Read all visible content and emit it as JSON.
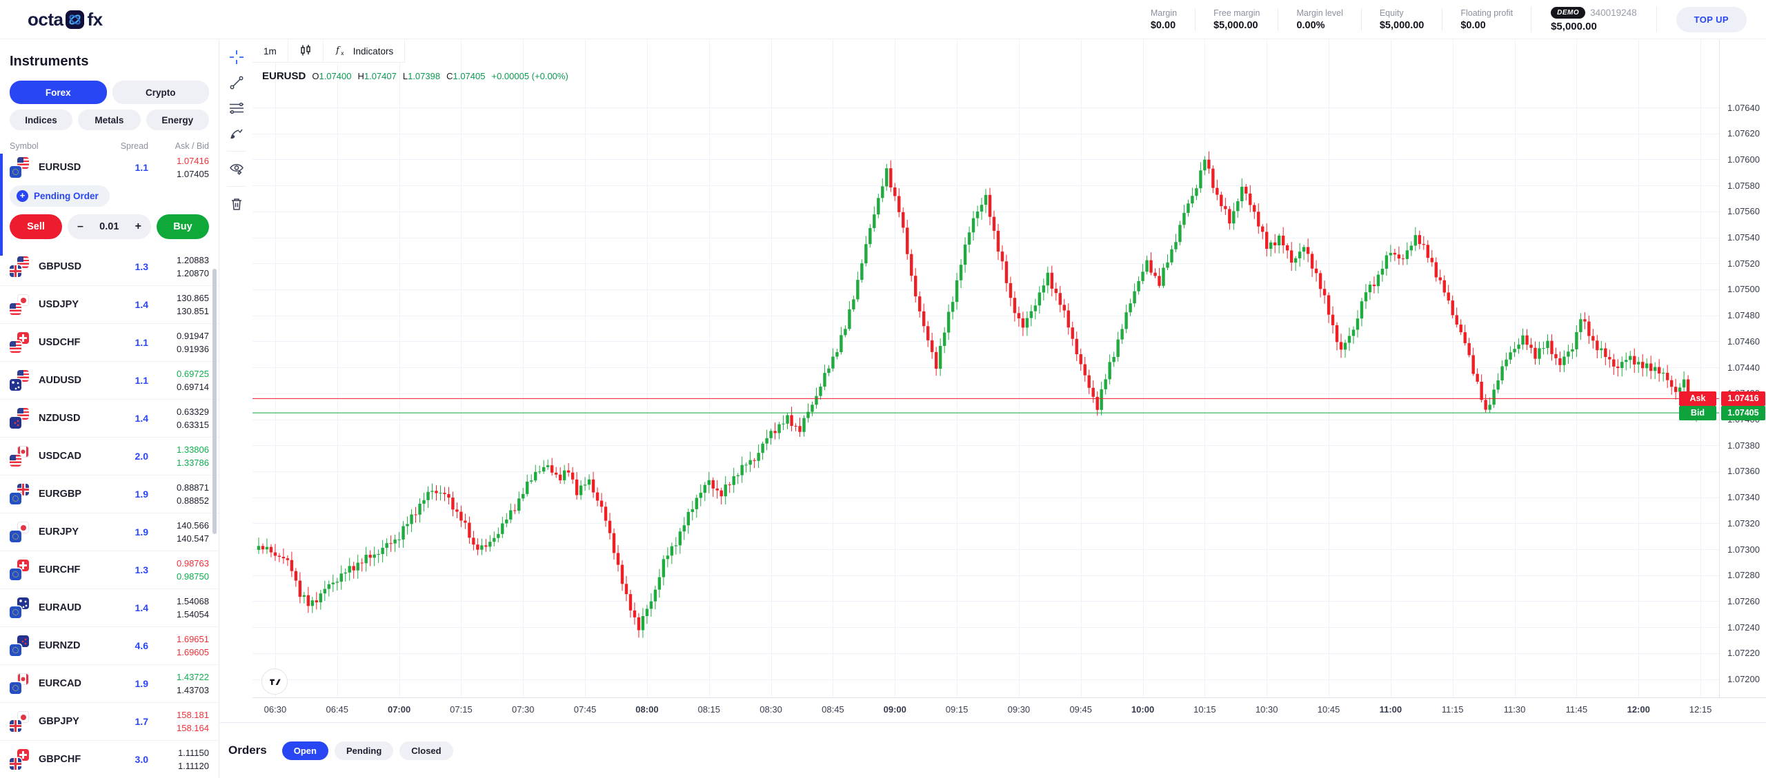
{
  "header": {
    "logo": {
      "text_left": "octa",
      "text_right": "fx"
    },
    "metrics": [
      {
        "label": "Margin",
        "value": "$0.00"
      },
      {
        "label": "Free margin",
        "value": "$5,000.00"
      },
      {
        "label": "Margin level",
        "value": "0.00%"
      },
      {
        "label": "Equity",
        "value": "$5,000.00"
      },
      {
        "label": "Floating profit",
        "value": "$0.00"
      }
    ],
    "account": {
      "badge": "DEMO",
      "id": "340019248",
      "balance": "$5,000.00"
    },
    "topup_label": "TOP UP"
  },
  "sidebar": {
    "title": "Instruments",
    "categories": [
      {
        "label": "Forex",
        "active": true
      },
      {
        "label": "Crypto",
        "active": false
      },
      {
        "label": "Indices",
        "active": false
      },
      {
        "label": "Metals",
        "active": false
      },
      {
        "label": "Energy",
        "active": false
      }
    ],
    "columns": {
      "symbol": "Symbol",
      "spread": "Spread",
      "askbid": "Ask / Bid"
    },
    "selected": {
      "symbol": "EURUSD",
      "base": "EUR",
      "quote": "USD",
      "spread": "1.1",
      "ask": "1.07416",
      "bid": "1.07405",
      "ask_color": "red",
      "bid_color": "dark"
    },
    "pending_label": "Pending Order",
    "trade": {
      "sell_label": "Sell",
      "buy_label": "Buy",
      "minus": "–",
      "volume": "0.01",
      "plus": "+"
    },
    "rows": [
      {
        "symbol": "GBPUSD",
        "base": "GBP",
        "quote": "USD",
        "spread": "1.3",
        "ask": "1.20883",
        "bid": "1.20870",
        "ask_color": "dark",
        "bid_color": "dark"
      },
      {
        "symbol": "USDJPY",
        "base": "USD",
        "quote": "JPY",
        "spread": "1.4",
        "ask": "130.865",
        "bid": "130.851",
        "ask_color": "dark",
        "bid_color": "dark"
      },
      {
        "symbol": "USDCHF",
        "base": "USD",
        "quote": "CHF",
        "spread": "1.1",
        "ask": "0.91947",
        "bid": "0.91936",
        "ask_color": "dark",
        "bid_color": "dark"
      },
      {
        "symbol": "AUDUSD",
        "base": "AUD",
        "quote": "USD",
        "spread": "1.1",
        "ask": "0.69725",
        "bid": "0.69714",
        "ask_color": "green",
        "bid_color": "dark"
      },
      {
        "symbol": "NZDUSD",
        "base": "NZD",
        "quote": "USD",
        "spread": "1.4",
        "ask": "0.63329",
        "bid": "0.63315",
        "ask_color": "dark",
        "bid_color": "dark"
      },
      {
        "symbol": "USDCAD",
        "base": "USD",
        "quote": "CAD",
        "spread": "2.0",
        "ask": "1.33806",
        "bid": "1.33786",
        "ask_color": "green",
        "bid_color": "green"
      },
      {
        "symbol": "EURGBP",
        "base": "EUR",
        "quote": "GBP",
        "spread": "1.9",
        "ask": "0.88871",
        "bid": "0.88852",
        "ask_color": "dark",
        "bid_color": "dark"
      },
      {
        "symbol": "EURJPY",
        "base": "EUR",
        "quote": "JPY",
        "spread": "1.9",
        "ask": "140.566",
        "bid": "140.547",
        "ask_color": "dark",
        "bid_color": "dark"
      },
      {
        "symbol": "EURCHF",
        "base": "EUR",
        "quote": "CHF",
        "spread": "1.3",
        "ask": "0.98763",
        "bid": "0.98750",
        "ask_color": "red",
        "bid_color": "green"
      },
      {
        "symbol": "EURAUD",
        "base": "EUR",
        "quote": "AUD",
        "spread": "1.4",
        "ask": "1.54068",
        "bid": "1.54054",
        "ask_color": "dark",
        "bid_color": "dark"
      },
      {
        "symbol": "EURNZD",
        "base": "EUR",
        "quote": "NZD",
        "spread": "4.6",
        "ask": "1.69651",
        "bid": "1.69605",
        "ask_color": "red",
        "bid_color": "red"
      },
      {
        "symbol": "EURCAD",
        "base": "EUR",
        "quote": "CAD",
        "spread": "1.9",
        "ask": "1.43722",
        "bid": "1.43703",
        "ask_color": "green",
        "bid_color": "dark"
      },
      {
        "symbol": "GBPJPY",
        "base": "GBP",
        "quote": "JPY",
        "spread": "1.7",
        "ask": "158.181",
        "bid": "158.164",
        "ask_color": "red",
        "bid_color": "red"
      },
      {
        "symbol": "GBPCHF",
        "base": "GBP",
        "quote": "CHF",
        "spread": "3.0",
        "ask": "1.11150",
        "bid": "1.11120",
        "ask_color": "dark",
        "bid_color": "dark"
      }
    ]
  },
  "chart": {
    "timeframe_label": "1m",
    "indicators_label": "Indicators",
    "symbol": "EURUSD",
    "ohlc": {
      "o_label": "O",
      "o": "1.07400",
      "h_label": "H",
      "h": "1.07407",
      "l_label": "L",
      "l": "1.07398",
      "c_label": "C",
      "c": "1.07405",
      "change": "+0.00005 (+0.00%)"
    },
    "ask_label": "Ask",
    "ask_price": "1.07416",
    "bid_label": "Bid",
    "bid_price": "1.07405"
  },
  "chart_data": {
    "type": "candlestick",
    "symbol": "EURUSD",
    "timeframe": "1m",
    "up_color": "#20ab40",
    "down_color": "#ee2026",
    "grid_color": "#f0f2fa",
    "ask_line": 1.07416,
    "bid_line": 1.07405,
    "y_axis": {
      "min": 1.07186,
      "max": 1.07692,
      "decimals": 5,
      "ticks": [
        1.072,
        1.0722,
        1.0724,
        1.0726,
        1.0728,
        1.073,
        1.0732,
        1.0734,
        1.0736,
        1.0738,
        1.074,
        1.0742,
        1.0744,
        1.0746,
        1.0748,
        1.075,
        1.0752,
        1.0754,
        1.0756,
        1.0758,
        1.076,
        1.0762,
        1.0764
      ]
    },
    "x_axis": {
      "m_min": 384.5,
      "m_max": 739.5,
      "labels": [
        "06:30",
        "06:45",
        "07:00",
        "07:15",
        "07:30",
        "07:45",
        "08:00",
        "08:15",
        "08:30",
        "08:45",
        "09:00",
        "09:15",
        "09:30",
        "09:45",
        "10:00",
        "10:15",
        "10:30",
        "10:45",
        "11:00",
        "11:15",
        "11:30",
        "11:45",
        "12:00",
        "12:15"
      ]
    },
    "last_candle": {
      "o": 1.074,
      "h": 1.07407,
      "l": 1.07398,
      "c": 1.07405
    },
    "anchors": [
      [
        386,
        1.07302
      ],
      [
        389,
        1.07298
      ],
      [
        392,
        1.07293
      ],
      [
        394,
        1.07285
      ],
      [
        396,
        1.07266
      ],
      [
        398,
        1.07257
      ],
      [
        400,
        1.07262
      ],
      [
        403,
        1.07272
      ],
      [
        406,
        1.0728
      ],
      [
        410,
        1.07289
      ],
      [
        415,
        1.07298
      ],
      [
        420,
        1.0731
      ],
      [
        424,
        1.0733
      ],
      [
        428,
        1.07346
      ],
      [
        431,
        1.07342
      ],
      [
        435,
        1.07324
      ],
      [
        438,
        1.07303
      ],
      [
        441,
        1.07301
      ],
      [
        445,
        1.07318
      ],
      [
        449,
        1.07338
      ],
      [
        453,
        1.0736
      ],
      [
        456,
        1.07363
      ],
      [
        459,
        1.07355
      ],
      [
        461,
        1.0736
      ],
      [
        463,
        1.07345
      ],
      [
        466,
        1.07352
      ],
      [
        469,
        1.07332
      ],
      [
        472,
        1.073
      ],
      [
        475,
        1.07262
      ],
      [
        478,
        1.0724
      ],
      [
        481,
        1.0726
      ],
      [
        484,
        1.0729
      ],
      [
        488,
        1.07312
      ],
      [
        492,
        1.0734
      ],
      [
        495,
        1.07352
      ],
      [
        498,
        1.07342
      ],
      [
        502,
        1.0736
      ],
      [
        506,
        1.0737
      ],
      [
        510,
        1.0739
      ],
      [
        514,
        1.074
      ],
      [
        517,
        1.07392
      ],
      [
        520,
        1.07412
      ],
      [
        524,
        1.0744
      ],
      [
        528,
        1.0747
      ],
      [
        532,
        1.0752
      ],
      [
        535,
        1.0756
      ],
      [
        538,
        1.0759
      ],
      [
        541,
        1.07562
      ],
      [
        544,
        1.0751
      ],
      [
        547,
        1.0747
      ],
      [
        550,
        1.07442
      ],
      [
        553,
        1.0748
      ],
      [
        556,
        1.0752
      ],
      [
        559,
        1.07556
      ],
      [
        562,
        1.0757
      ],
      [
        565,
        1.07532
      ],
      [
        568,
        1.07492
      ],
      [
        571,
        1.0747
      ],
      [
        574,
        1.0749
      ],
      [
        577,
        1.0751
      ],
      [
        580,
        1.0749
      ],
      [
        583,
        1.07462
      ],
      [
        586,
        1.07432
      ],
      [
        589,
        1.0741
      ],
      [
        592,
        1.07442
      ],
      [
        595,
        1.0747
      ],
      [
        598,
        1.075
      ],
      [
        601,
        1.0752
      ],
      [
        604,
        1.07505
      ],
      [
        607,
        1.0753
      ],
      [
        610,
        1.07558
      ],
      [
        613,
        1.0758
      ],
      [
        615,
        1.076
      ],
      [
        618,
        1.07572
      ],
      [
        621,
        1.07552
      ],
      [
        624,
        1.07578
      ],
      [
        627,
        1.0756
      ],
      [
        630,
        1.07532
      ],
      [
        633,
        1.0754
      ],
      [
        636,
        1.07522
      ],
      [
        639,
        1.07532
      ],
      [
        642,
        1.07512
      ],
      [
        645,
        1.07482
      ],
      [
        648,
        1.07452
      ],
      [
        651,
        1.0747
      ],
      [
        654,
        1.07498
      ],
      [
        657,
        1.0751
      ],
      [
        660,
        1.0753
      ],
      [
        663,
        1.07522
      ],
      [
        666,
        1.07542
      ],
      [
        670,
        1.0752
      ],
      [
        674,
        1.0749
      ],
      [
        678,
        1.07458
      ],
      [
        681,
        1.07428
      ],
      [
        683,
        1.07404
      ],
      [
        686,
        1.07432
      ],
      [
        689,
        1.07452
      ],
      [
        692,
        1.07462
      ],
      [
        695,
        1.0745
      ],
      [
        698,
        1.07458
      ],
      [
        701,
        1.07442
      ],
      [
        704,
        1.07456
      ],
      [
        706,
        1.07478
      ],
      [
        709,
        1.0746
      ],
      [
        712,
        1.07448
      ],
      [
        715,
        1.0744
      ],
      [
        718,
        1.07448
      ],
      [
        721,
        1.0744
      ],
      [
        724,
        1.0744
      ],
      [
        727,
        1.0743
      ],
      [
        729,
        1.07422
      ],
      [
        731,
        1.07428
      ],
      [
        733,
        1.07404
      ],
      [
        734,
        1.07405
      ]
    ]
  },
  "orders": {
    "title": "Orders",
    "tabs": [
      {
        "label": "Open",
        "active": true
      },
      {
        "label": "Pending",
        "active": false
      },
      {
        "label": "Closed",
        "active": false
      }
    ]
  }
}
